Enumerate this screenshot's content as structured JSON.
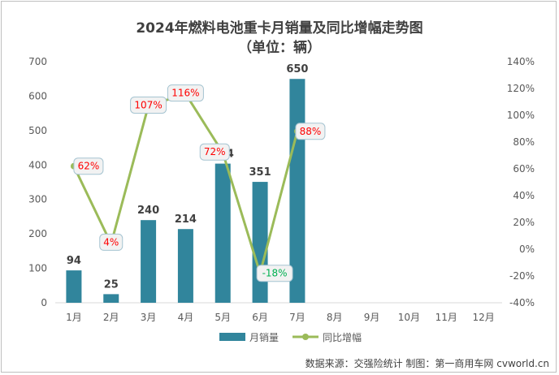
{
  "chart_data": {
    "type": "bar",
    "title": "2024年燃料电池重卡月销量及同比增幅走势图",
    "subtitle": "（单位：辆）",
    "categories": [
      "1月",
      "2月",
      "3月",
      "4月",
      "5月",
      "6月",
      "7月",
      "8月",
      "9月",
      "10月",
      "11月",
      "12月"
    ],
    "series": [
      {
        "name": "月销量",
        "type": "bar",
        "axis": "left",
        "color": "#31859c",
        "values": [
          94,
          25,
          240,
          214,
          404,
          351,
          650,
          null,
          null,
          null,
          null,
          null
        ]
      },
      {
        "name": "同比增幅",
        "type": "line",
        "axis": "right",
        "color": "#9bbb59",
        "values": [
          62,
          4,
          107,
          116,
          72,
          -18,
          88,
          null,
          null,
          null,
          null,
          null
        ]
      }
    ],
    "ylim_left": [
      0,
      700
    ],
    "yticks_left": [
      "0",
      "100",
      "200",
      "300",
      "400",
      "500",
      "600",
      "700"
    ],
    "ylim_right": [
      -40,
      140
    ],
    "yticks_right": [
      "-40%",
      "-20%",
      "0%",
      "20%",
      "40%",
      "60%",
      "80%",
      "100%",
      "120%",
      "140%"
    ],
    "pct_labels": [
      "62%",
      "4%",
      "107%",
      "116%",
      "72%",
      "-18%",
      "88%"
    ],
    "bar_labels": [
      "94",
      "25",
      "240",
      "214",
      "404",
      "351",
      "650"
    ],
    "grid": false,
    "legend_position": "bottom",
    "colors": {
      "positive_label": "#ff0000",
      "negative_label": "#00b050",
      "callout_fill": "#f2f2f2",
      "callout_border": "#a5c4d1"
    }
  },
  "source_note": "数据来源：交强险统计  制图：第一商用车网 cvworld.cn"
}
